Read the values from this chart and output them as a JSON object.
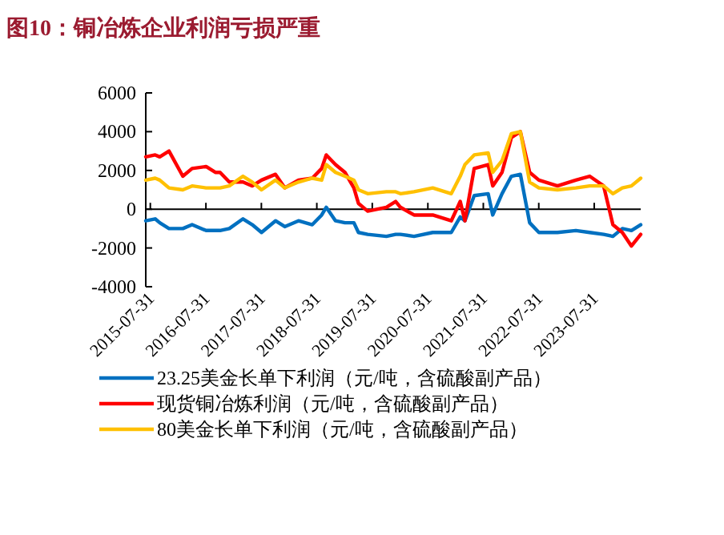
{
  "chart_data": {
    "type": "line",
    "title": "图10：铜冶炼企业利润亏损严重",
    "x": [
      "2015-07",
      "2015-09",
      "2015-10",
      "2015-12",
      "2016-03",
      "2016-05",
      "2016-08",
      "2016-10",
      "2016-11",
      "2017-01",
      "2017-04",
      "2017-06",
      "2017-08",
      "2017-11",
      "2018-01",
      "2018-04",
      "2018-07",
      "2018-09",
      "2018-10",
      "2018-12",
      "2019-02",
      "2019-04",
      "2019-05",
      "2019-07",
      "2019-11",
      "2020-01",
      "2020-02",
      "2020-05",
      "2020-09",
      "2021-01",
      "2021-03",
      "2021-04",
      "2021-06",
      "2021-09",
      "2021-10",
      "2021-12",
      "2022-02",
      "2022-04",
      "2022-06",
      "2022-08",
      "2022-12",
      "2023-04",
      "2023-07",
      "2023-10",
      "2023-12",
      "2024-02",
      "2024-04",
      "2024-06"
    ],
    "series": [
      {
        "name": "23.25美金长单下利润（元/吨，含硫酸副产品）",
        "color": "#0070c0",
        "values": [
          -600,
          -500,
          -700,
          -1000,
          -1000,
          -800,
          -1100,
          -1100,
          -1100,
          -1000,
          -500,
          -800,
          -1200,
          -600,
          -900,
          -600,
          -800,
          -300,
          100,
          -600,
          -700,
          -700,
          -1200,
          -1300,
          -1400,
          -1300,
          -1300,
          -1400,
          -1200,
          -1200,
          -400,
          -600,
          700,
          800,
          -300,
          800,
          1700,
          1800,
          -700,
          -1200,
          -1200,
          -1100,
          -1200,
          -1300,
          -1400,
          -1000,
          -1100,
          -800
        ]
      },
      {
        "name": "现货铜冶炼利润（元/吨，含硫酸副产品）",
        "color": "#ff0000",
        "values": [
          2700,
          2800,
          2700,
          3000,
          1700,
          2100,
          2200,
          1900,
          1900,
          1400,
          1400,
          1200,
          1500,
          1800,
          1100,
          1500,
          1600,
          2100,
          2800,
          2300,
          1900,
          1100,
          300,
          -100,
          100,
          400,
          100,
          -300,
          -300,
          -600,
          400,
          -600,
          2100,
          2300,
          1200,
          1900,
          3700,
          4000,
          1900,
          1500,
          1200,
          1500,
          1700,
          1200,
          -800,
          -1200,
          -1900,
          -1300
        ]
      },
      {
        "name": "80美金长单下利润（元/吨，含硫酸副产品）",
        "color": "#ffc000",
        "values": [
          1500,
          1600,
          1500,
          1100,
          1000,
          1200,
          1100,
          1100,
          1100,
          1200,
          1700,
          1400,
          1000,
          1500,
          1100,
          1400,
          1600,
          1500,
          2300,
          1900,
          1700,
          1500,
          1000,
          800,
          900,
          900,
          800,
          900,
          1100,
          800,
          1700,
          2300,
          2800,
          2900,
          1900,
          2500,
          3900,
          4000,
          1400,
          1100,
          1000,
          1100,
          1200,
          1200,
          800,
          1100,
          1200,
          1600
        ]
      }
    ],
    "xlim": [
      "2015-07",
      "2024-06"
    ],
    "xticks": [
      "2015-07-31",
      "2016-07-31",
      "2017-07-31",
      "2018-07-31",
      "2019-07-31",
      "2020-07-31",
      "2021-07-31",
      "2022-07-31",
      "2023-07-31"
    ],
    "ylim": [
      -4000,
      6000
    ],
    "yticks": [
      -4000,
      -2000,
      0,
      2000,
      4000,
      6000
    ],
    "legend": "bottom",
    "marker": "none",
    "line_style": "solid"
  }
}
